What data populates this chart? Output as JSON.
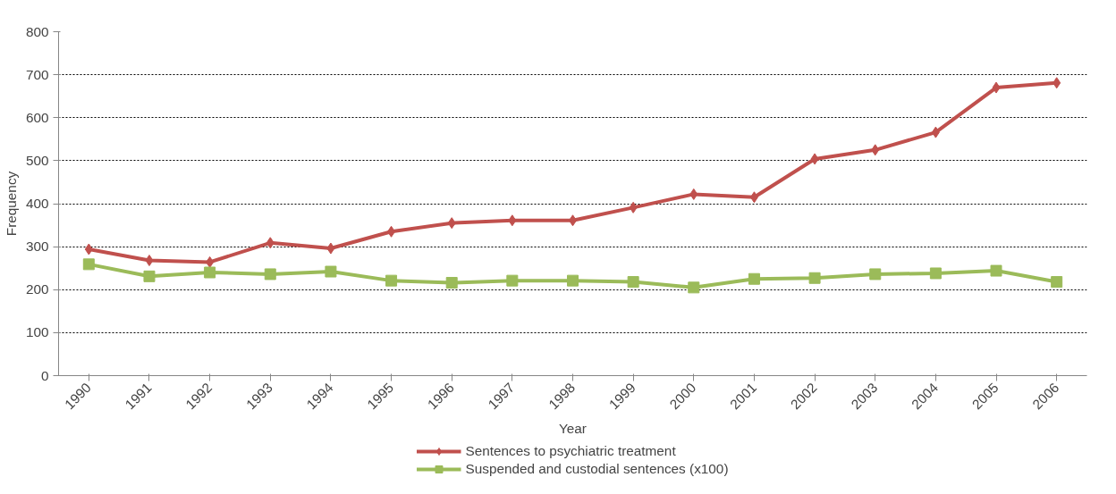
{
  "chart_data": {
    "type": "line",
    "xlabel": "Year",
    "ylabel": "Frequency",
    "categories": [
      "1990",
      "1991",
      "1992",
      "1993",
      "1994",
      "1995",
      "1996",
      "1997",
      "1998",
      "1999",
      "2000",
      "2001",
      "2002",
      "2003",
      "2004",
      "2005",
      "2006"
    ],
    "series": [
      {
        "name": "Sentences to psychiatric treatment",
        "color": "#c0504d",
        "marker": "diamond",
        "values": [
          294,
          268,
          264,
          309,
          296,
          335,
          355,
          361,
          361,
          391,
          422,
          415,
          504,
          525,
          566,
          670,
          681
        ]
      },
      {
        "name": "Suspended and custodial sentences (x100)",
        "color": "#9bbb59",
        "marker": "square",
        "values": [
          259,
          231,
          240,
          236,
          242,
          221,
          216,
          221,
          221,
          218,
          205,
          225,
          227,
          236,
          238,
          244,
          218
        ]
      }
    ],
    "ylim": [
      0,
      800
    ],
    "yticks": [
      0,
      100,
      200,
      300,
      400,
      500,
      600,
      700,
      800
    ],
    "grid": "y",
    "legend": "bottom",
    "line_style": "solid"
  }
}
